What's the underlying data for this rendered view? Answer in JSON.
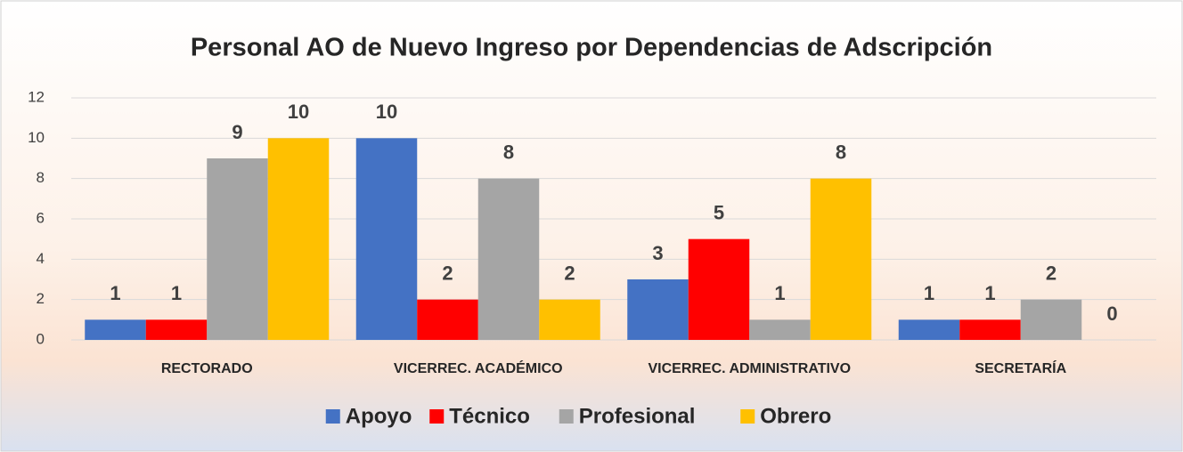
{
  "chart_data": {
    "type": "bar",
    "title": "Personal AO de Nuevo Ingreso por Dependencias de Adscripción",
    "categories": [
      "RECTORADO",
      "VICERREC. ACADÉMICO",
      "VICERREC. ADMINISTRATIVO",
      "SECRETARÍA"
    ],
    "series": [
      {
        "name": "Apoyo",
        "color": "#4472c4",
        "values": [
          1,
          10,
          3,
          1
        ]
      },
      {
        "name": "Técnico",
        "color": "#ff0000",
        "values": [
          1,
          2,
          5,
          1
        ]
      },
      {
        "name": "Profesional",
        "color": "#a5a5a5",
        "values": [
          9,
          8,
          1,
          2
        ]
      },
      {
        "name": "Obrero",
        "color": "#ffc000",
        "values": [
          10,
          2,
          8,
          0
        ]
      }
    ],
    "ylim": [
      0,
      12
    ],
    "yticks": [
      0,
      2,
      4,
      6,
      8,
      10,
      12
    ],
    "grid": true,
    "legend": "bottom"
  }
}
